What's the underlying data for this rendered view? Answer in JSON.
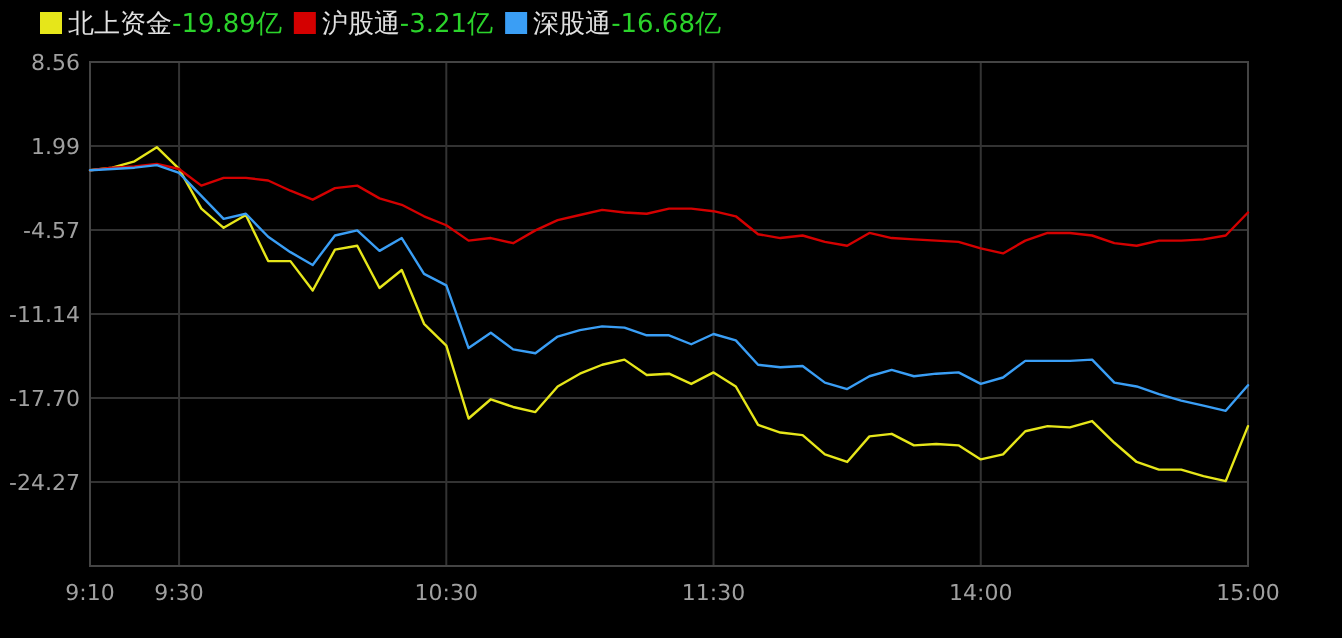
{
  "chart_data": {
    "type": "line",
    "legend": "top left",
    "grid": true,
    "categories": [
      "9:10",
      null,
      null,
      null,
      "9:30",
      null,
      null,
      null,
      null,
      null,
      null,
      null,
      null,
      null,
      null,
      null,
      "10:30",
      null,
      null,
      null,
      null,
      null,
      null,
      null,
      null,
      null,
      null,
      null,
      "11:30",
      null,
      null,
      null,
      null,
      null,
      null,
      null,
      null,
      null,
      null,
      null,
      "14:00",
      null,
      null,
      null,
      null,
      null,
      null,
      null,
      null,
      null,
      null,
      null,
      "15:00"
    ],
    "ylim": [
      -30.83,
      8.56
    ],
    "yticks": [
      8.56,
      1.99,
      -4.57,
      -11.14,
      {
        "value": -17.7,
        "label": "-17.70"
      },
      -24.27
    ],
    "annotations": [
      "-19.89亿",
      "-3.21亿",
      "-16.68亿"
    ],
    "series": [
      {
        "name": "北上资金",
        "color": "#e6e61a",
        "values": [
          0.1,
          0.3,
          0.8,
          1.9,
          0.2,
          -2.9,
          -4.4,
          -3.4,
          -7.0,
          -7.0,
          -9.3,
          -6.1,
          -5.8,
          -9.1,
          -7.7,
          -11.9,
          -13.6,
          -19.3,
          -17.8,
          -18.4,
          -18.8,
          -16.8,
          -15.8,
          -15.1,
          -14.7,
          -15.9,
          -15.8,
          -16.6,
          -15.7,
          -16.8,
          -19.8,
          -20.4,
          -20.6,
          -22.1,
          -22.7,
          -20.7,
          -20.5,
          -21.4,
          -21.3,
          -21.4,
          -22.5,
          -22.1,
          -20.3,
          -19.9,
          -20.0,
          -19.5,
          -21.2,
          -22.7,
          -23.3,
          -23.3,
          -23.8,
          -24.2,
          -19.9
        ]
      },
      {
        "name": "沪股通",
        "color": "#d40000",
        "values": [
          0.1,
          0.3,
          0.4,
          0.6,
          0.2,
          -1.1,
          -0.5,
          -0.5,
          -0.7,
          -1.5,
          -2.2,
          -1.3,
          -1.1,
          -2.1,
          -2.6,
          -3.5,
          -4.2,
          -5.4,
          -5.2,
          -5.6,
          -4.6,
          -3.8,
          -3.4,
          -3.0,
          -3.2,
          -3.3,
          -2.9,
          -2.9,
          -3.1,
          -3.5,
          -4.9,
          -5.2,
          -5.0,
          -5.5,
          -5.8,
          -4.8,
          -5.2,
          -5.3,
          -5.4,
          -5.5,
          -6.0,
          -6.4,
          -5.4,
          -4.8,
          -4.8,
          -5.0,
          -5.6,
          -5.8,
          -5.4,
          -5.4,
          -5.3,
          -5.0,
          -3.2
        ]
      },
      {
        "name": "深股通",
        "color": "#3a9ef5",
        "values": [
          0.1,
          0.2,
          0.3,
          0.5,
          -0.1,
          -1.9,
          -3.7,
          -3.3,
          -5.1,
          -6.3,
          -7.3,
          -5.0,
          -4.6,
          -6.2,
          -5.2,
          -8.0,
          -8.9,
          -13.8,
          -12.6,
          -13.9,
          -14.2,
          -12.9,
          -12.4,
          -12.1,
          -12.2,
          -12.8,
          -12.8,
          -13.5,
          -12.7,
          -13.2,
          -15.1,
          -15.3,
          -15.2,
          -16.5,
          -17.0,
          -16.0,
          -15.5,
          -16.0,
          -15.8,
          -15.7,
          -16.6,
          -16.1,
          -14.8,
          -14.8,
          -14.8,
          -14.7,
          -16.5,
          -16.8,
          -17.4,
          -17.9,
          -18.3,
          -18.7,
          -16.7
        ]
      }
    ]
  }
}
